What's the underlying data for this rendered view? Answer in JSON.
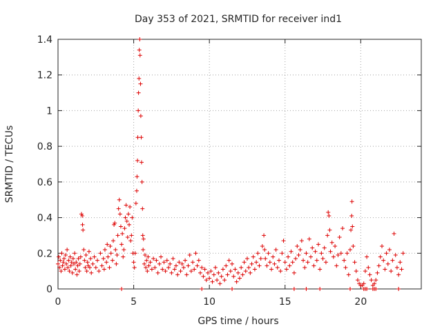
{
  "chart_data": {
    "type": "scatter",
    "title": "Day 353 of 2021, SRMTID for receiver ind1",
    "xlabel": "GPS time / hours",
    "ylabel": "SRMTID / TECUs",
    "xlim": [
      0,
      24
    ],
    "ylim": [
      0,
      1.4
    ],
    "x_ticks": [
      0,
      5,
      10,
      15,
      20
    ],
    "x_tick_labels": [
      "0",
      "5",
      "10",
      "15",
      "20"
    ],
    "y_ticks": [
      0,
      0.2,
      0.4,
      0.6,
      0.8,
      1.0,
      1.2,
      1.4
    ],
    "y_tick_labels": [
      "0",
      "0.2",
      "0.4",
      "0.6",
      "0.8",
      "1",
      "1.2",
      "1.4"
    ],
    "grid": true,
    "marker": "+",
    "marker_color": "#dd0000",
    "series": [
      {
        "name": "SRMTID",
        "points": [
          [
            0.0,
            0.14
          ],
          [
            0.05,
            0.18
          ],
          [
            0.1,
            0.12
          ],
          [
            0.15,
            0.16
          ],
          [
            0.2,
            0.1
          ],
          [
            0.25,
            0.2
          ],
          [
            0.3,
            0.13
          ],
          [
            0.35,
            0.15
          ],
          [
            0.4,
            0.17
          ],
          [
            0.45,
            0.11
          ],
          [
            0.5,
            0.19
          ],
          [
            0.55,
            0.14
          ],
          [
            0.6,
            0.22
          ],
          [
            0.65,
            0.12
          ],
          [
            0.7,
            0.16
          ],
          [
            0.75,
            0.1
          ],
          [
            0.8,
            0.18
          ],
          [
            0.85,
            0.13
          ],
          [
            0.9,
            0.15
          ],
          [
            0.95,
            0.09
          ],
          [
            1.0,
            0.17
          ],
          [
            1.05,
            0.14
          ],
          [
            1.1,
            0.2
          ],
          [
            1.15,
            0.11
          ],
          [
            1.2,
            0.15
          ],
          [
            1.25,
            0.08
          ],
          [
            1.3,
            0.13
          ],
          [
            1.35,
            0.17
          ],
          [
            1.4,
            0.1
          ],
          [
            1.45,
            0.14
          ],
          [
            1.5,
            0.18
          ],
          [
            1.55,
            0.42
          ],
          [
            1.6,
            0.41
          ],
          [
            1.62,
            0.36
          ],
          [
            1.65,
            0.33
          ],
          [
            1.7,
            0.22
          ],
          [
            1.75,
            0.16
          ],
          [
            1.8,
            0.12
          ],
          [
            1.85,
            0.19
          ],
          [
            1.9,
            0.1
          ],
          [
            1.95,
            0.15
          ],
          [
            2.0,
            0.13
          ],
          [
            2.05,
            0.21
          ],
          [
            2.1,
            0.12
          ],
          [
            2.15,
            0.17
          ],
          [
            2.2,
            0.09
          ],
          [
            2.3,
            0.14
          ],
          [
            2.4,
            0.18
          ],
          [
            2.5,
            0.12
          ],
          [
            2.6,
            0.16
          ],
          [
            2.7,
            0.1
          ],
          [
            2.8,
            0.2
          ],
          [
            2.9,
            0.13
          ],
          [
            3.0,
            0.17
          ],
          [
            3.05,
            0.11
          ],
          [
            3.1,
            0.22
          ],
          [
            3.2,
            0.15
          ],
          [
            3.25,
            0.25
          ],
          [
            3.3,
            0.18
          ],
          [
            3.4,
            0.12
          ],
          [
            3.45,
            0.24
          ],
          [
            3.5,
            0.2
          ],
          [
            3.6,
            0.16
          ],
          [
            3.65,
            0.27
          ],
          [
            3.7,
            0.36
          ],
          [
            3.75,
            0.37
          ],
          [
            3.8,
            0.22
          ],
          [
            3.85,
            0.14
          ],
          [
            3.9,
            0.19
          ],
          [
            3.95,
            0.3
          ],
          [
            4.0,
            0.45
          ],
          [
            4.05,
            0.5
          ],
          [
            4.1,
            0.42
          ],
          [
            4.15,
            0.35
          ],
          [
            4.2,
            0.25
          ],
          [
            4.25,
            0.31
          ],
          [
            4.3,
            0.18
          ],
          [
            4.35,
            0.22
          ],
          [
            4.4,
            0.34
          ],
          [
            4.45,
            0.4
          ],
          [
            4.5,
            0.47
          ],
          [
            4.55,
            0.38
          ],
          [
            4.6,
            0.29
          ],
          [
            4.65,
            0.42
          ],
          [
            4.7,
            0.36
          ],
          [
            4.75,
            0.46
          ],
          [
            4.8,
            0.27
          ],
          [
            4.85,
            0.3
          ],
          [
            4.9,
            0.4
          ],
          [
            4.95,
            0.2
          ],
          [
            5.0,
            0.15
          ],
          [
            5.05,
            0.12
          ],
          [
            5.1,
            0.2
          ],
          [
            5.15,
            0.48
          ],
          [
            5.2,
            0.55
          ],
          [
            5.22,
            0.63
          ],
          [
            5.25,
            0.72
          ],
          [
            5.27,
            0.85
          ],
          [
            5.3,
            1.0
          ],
          [
            5.32,
            1.1
          ],
          [
            5.35,
            1.18
          ],
          [
            5.37,
            1.34
          ],
          [
            5.4,
            1.4
          ],
          [
            5.42,
            1.31
          ],
          [
            5.45,
            1.15
          ],
          [
            5.47,
            0.97
          ],
          [
            5.5,
            0.85
          ],
          [
            5.52,
            0.71
          ],
          [
            5.55,
            0.6
          ],
          [
            5.58,
            0.45
          ],
          [
            5.6,
            0.3
          ],
          [
            5.62,
            0.22
          ],
          [
            5.65,
            0.28
          ],
          [
            5.7,
            0.14
          ],
          [
            5.75,
            0.19
          ],
          [
            5.8,
            0.12
          ],
          [
            5.85,
            0.16
          ],
          [
            5.9,
            0.1
          ],
          [
            5.95,
            0.18
          ],
          [
            6.0,
            0.13
          ],
          [
            6.1,
            0.15
          ],
          [
            6.2,
            0.11
          ],
          [
            6.3,
            0.17
          ],
          [
            6.4,
            0.12
          ],
          [
            6.5,
            0.16
          ],
          [
            6.6,
            0.09
          ],
          [
            6.7,
            0.14
          ],
          [
            6.8,
            0.18
          ],
          [
            6.9,
            0.11
          ],
          [
            7.0,
            0.15
          ],
          [
            7.1,
            0.1
          ],
          [
            7.2,
            0.16
          ],
          [
            7.3,
            0.12
          ],
          [
            7.4,
            0.14
          ],
          [
            7.5,
            0.09
          ],
          [
            7.6,
            0.17
          ],
          [
            7.7,
            0.11
          ],
          [
            7.8,
            0.13
          ],
          [
            7.9,
            0.08
          ],
          [
            8.0,
            0.15
          ],
          [
            8.1,
            0.1
          ],
          [
            8.2,
            0.14
          ],
          [
            8.3,
            0.12
          ],
          [
            8.4,
            0.16
          ],
          [
            8.5,
            0.08
          ],
          [
            8.6,
            0.13
          ],
          [
            8.7,
            0.19
          ],
          [
            8.8,
            0.1
          ],
          [
            8.9,
            0.15
          ],
          [
            9.0,
            0.11
          ],
          [
            9.1,
            0.2
          ],
          [
            9.2,
            0.13
          ],
          [
            9.3,
            0.16
          ],
          [
            9.4,
            0.09
          ],
          [
            9.5,
            0.12
          ],
          [
            9.6,
            0.07
          ],
          [
            9.7,
            0.11
          ],
          [
            9.8,
            0.05
          ],
          [
            9.9,
            0.09
          ],
          [
            10.0,
            0.06
          ],
          [
            10.1,
            0.1
          ],
          [
            10.2,
            0.04
          ],
          [
            10.3,
            0.08
          ],
          [
            10.4,
            0.12
          ],
          [
            10.5,
            0.05
          ],
          [
            10.6,
            0.09
          ],
          [
            10.7,
            0.03
          ],
          [
            10.8,
            0.07
          ],
          [
            10.9,
            0.11
          ],
          [
            11.0,
            0.05
          ],
          [
            11.1,
            0.13
          ],
          [
            11.2,
            0.08
          ],
          [
            11.3,
            0.16
          ],
          [
            11.4,
            0.1
          ],
          [
            11.5,
            0.14
          ],
          [
            11.6,
            0.07
          ],
          [
            11.7,
            0.11
          ],
          [
            11.8,
            0.04
          ],
          [
            11.9,
            0.09
          ],
          [
            12.0,
            0.06
          ],
          [
            12.1,
            0.12
          ],
          [
            12.2,
            0.08
          ],
          [
            12.3,
            0.15
          ],
          [
            12.4,
            0.1
          ],
          [
            12.5,
            0.17
          ],
          [
            12.6,
            0.12
          ],
          [
            12.7,
            0.09
          ],
          [
            12.8,
            0.14
          ],
          [
            12.9,
            0.18
          ],
          [
            13.0,
            0.11
          ],
          [
            13.1,
            0.15
          ],
          [
            13.2,
            0.2
          ],
          [
            13.3,
            0.13
          ],
          [
            13.4,
            0.17
          ],
          [
            13.5,
            0.24
          ],
          [
            13.6,
            0.3
          ],
          [
            13.65,
            0.22
          ],
          [
            13.7,
            0.17
          ],
          [
            13.8,
            0.13
          ],
          [
            13.9,
            0.2
          ],
          [
            14.0,
            0.15
          ],
          [
            14.1,
            0.11
          ],
          [
            14.2,
            0.18
          ],
          [
            14.3,
            0.14
          ],
          [
            14.4,
            0.22
          ],
          [
            14.5,
            0.12
          ],
          [
            14.6,
            0.16
          ],
          [
            14.7,
            0.1
          ],
          [
            14.8,
            0.2
          ],
          [
            14.9,
            0.27
          ],
          [
            15.0,
            0.15
          ],
          [
            15.1,
            0.11
          ],
          [
            15.2,
            0.18
          ],
          [
            15.3,
            0.13
          ],
          [
            15.4,
            0.21
          ],
          [
            15.5,
            0.15
          ],
          [
            15.6,
            0.09
          ],
          [
            15.7,
            0.17
          ],
          [
            15.8,
            0.24
          ],
          [
            15.9,
            0.19
          ],
          [
            16.0,
            0.22
          ],
          [
            16.1,
            0.27
          ],
          [
            16.2,
            0.16
          ],
          [
            16.3,
            0.12
          ],
          [
            16.4,
            0.2
          ],
          [
            16.5,
            0.15
          ],
          [
            16.6,
            0.28
          ],
          [
            16.7,
            0.18
          ],
          [
            16.8,
            0.23
          ],
          [
            16.9,
            0.13
          ],
          [
            17.0,
            0.21
          ],
          [
            17.1,
            0.16
          ],
          [
            17.2,
            0.25
          ],
          [
            17.3,
            0.11
          ],
          [
            17.4,
            0.2
          ],
          [
            17.5,
            0.17
          ],
          [
            17.6,
            0.23
          ],
          [
            17.7,
            0.15
          ],
          [
            17.8,
            0.3
          ],
          [
            17.85,
            0.43
          ],
          [
            17.9,
            0.41
          ],
          [
            17.95,
            0.33
          ],
          [
            18.0,
            0.21
          ],
          [
            18.1,
            0.26
          ],
          [
            18.2,
            0.18
          ],
          [
            18.3,
            0.24
          ],
          [
            18.4,
            0.13
          ],
          [
            18.5,
            0.19
          ],
          [
            18.6,
            0.29
          ],
          [
            18.7,
            0.2
          ],
          [
            18.8,
            0.34
          ],
          [
            18.9,
            0.16
          ],
          [
            19.0,
            0.12
          ],
          [
            19.1,
            0.2
          ],
          [
            19.2,
            0.08
          ],
          [
            19.3,
            0.22
          ],
          [
            19.35,
            0.33
          ],
          [
            19.4,
            0.41
          ],
          [
            19.42,
            0.49
          ],
          [
            19.45,
            0.35
          ],
          [
            19.5,
            0.24
          ],
          [
            19.6,
            0.15
          ],
          [
            19.7,
            0.1
          ],
          [
            19.8,
            0.05
          ],
          [
            19.9,
            0.03
          ],
          [
            20.0,
            0.02
          ],
          [
            20.1,
            0.02
          ],
          [
            20.2,
            0.03
          ],
          [
            20.3,
            0.1
          ],
          [
            20.4,
            0.18
          ],
          [
            20.5,
            0.12
          ],
          [
            20.6,
            0.08
          ],
          [
            20.7,
            0.05
          ],
          [
            20.8,
            0.02
          ],
          [
            20.9,
            0.03
          ],
          [
            21.0,
            0.05
          ],
          [
            21.1,
            0.09
          ],
          [
            21.2,
            0.13
          ],
          [
            21.3,
            0.18
          ],
          [
            21.4,
            0.24
          ],
          [
            21.5,
            0.16
          ],
          [
            21.6,
            0.11
          ],
          [
            21.7,
            0.2
          ],
          [
            21.8,
            0.14
          ],
          [
            21.9,
            0.22
          ],
          [
            22.0,
            0.1
          ],
          [
            22.1,
            0.16
          ],
          [
            22.2,
            0.31
          ],
          [
            22.3,
            0.19
          ],
          [
            22.4,
            0.12
          ],
          [
            22.5,
            0.08
          ],
          [
            22.6,
            0.15
          ],
          [
            22.7,
            0.11
          ],
          [
            22.8,
            0.2
          ]
        ]
      }
    ],
    "zero_markers_x": [
      4.2,
      9.5,
      11.5,
      15.6,
      16.4,
      17.3,
      19.3,
      20.2,
      20.3,
      20.4,
      20.8,
      20.9,
      21.0,
      22.5
    ]
  }
}
